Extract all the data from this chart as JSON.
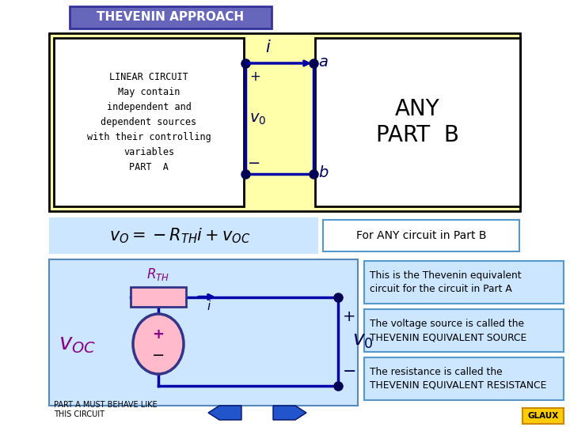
{
  "bg_color": "#ffffff",
  "title_text": "THEVENIN APPROACH",
  "title_bg": "#6666bb",
  "title_fg": "#ffffff",
  "title_border": "#333399",
  "yellow_panel_bg": "#ffffaa",
  "outer_box_bg": "#ffffaa",
  "left_white_bg": "#ffffff",
  "right_white_bg": "#ffffff",
  "formula_bg": "#cce6ff",
  "bottom_circuit_bg": "#cce6ff",
  "info_box_bg": "#cce6ff",
  "info_box_border": "#5599cc",
  "linear_circuit_text": "LINEAR CIRCUIT\nMay contain\nindependent and\ndependent sources\nwith their controlling\nvariables\nPART  A",
  "any_part_b_text": "ANY\nPART  B",
  "for_any_text": "For ANY circuit in Part B",
  "rth_label": "$R_{TH}$",
  "voc_label": "$v_{OC}$",
  "vo_label_bottom": "$v_0$",
  "part_a_text": "PART A MUST BEHAVE LIKE\nTHIS CIRCUIT",
  "info1": "This is the Thevenin equivalent\ncircuit for the circuit in Part A",
  "info2": "The voltage source is called the\nTHEVENIN EQUIVALENT SOURCE",
  "info3": "The resistance is called the\nTHEVENIN EQUIVALENT RESISTANCE",
  "dot_color": "#000055",
  "wire_color": "#0000aa",
  "nav_color": "#3366cc",
  "glaux_bg": "#ffcc00",
  "glaux_border": "#cc8800"
}
